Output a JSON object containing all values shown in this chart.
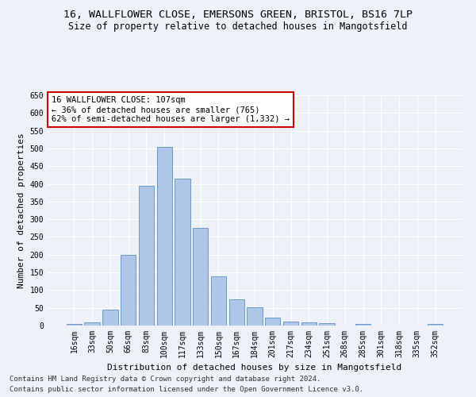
{
  "title1": "16, WALLFLOWER CLOSE, EMERSONS GREEN, BRISTOL, BS16 7LP",
  "title2": "Size of property relative to detached houses in Mangotsfield",
  "xlabel": "Distribution of detached houses by size in Mangotsfield",
  "ylabel": "Number of detached properties",
  "footer1": "Contains HM Land Registry data © Crown copyright and database right 2024.",
  "footer2": "Contains public sector information licensed under the Open Government Licence v3.0.",
  "categories": [
    "16sqm",
    "33sqm",
    "50sqm",
    "66sqm",
    "83sqm",
    "100sqm",
    "117sqm",
    "133sqm",
    "150sqm",
    "167sqm",
    "184sqm",
    "201sqm",
    "217sqm",
    "234sqm",
    "251sqm",
    "268sqm",
    "285sqm",
    "301sqm",
    "318sqm",
    "335sqm",
    "352sqm"
  ],
  "values": [
    5,
    10,
    45,
    200,
    395,
    505,
    415,
    275,
    138,
    75,
    52,
    22,
    12,
    8,
    7,
    0,
    5,
    0,
    0,
    0,
    4
  ],
  "bar_color": "#aec6e8",
  "bar_edge_color": "#5a8fc2",
  "annotation_text_line1": "16 WALLFLOWER CLOSE: 107sqm",
  "annotation_text_line2": "← 36% of detached houses are smaller (765)",
  "annotation_text_line3": "62% of semi-detached houses are larger (1,332) →",
  "annotation_box_color": "#ffffff",
  "annotation_box_edge": "#cc0000",
  "ylim": [
    0,
    650
  ],
  "yticks": [
    0,
    50,
    100,
    150,
    200,
    250,
    300,
    350,
    400,
    450,
    500,
    550,
    600,
    650
  ],
  "bg_color": "#eef2f8",
  "grid_color": "#ffffff",
  "title1_fontsize": 9.5,
  "title2_fontsize": 8.5,
  "xlabel_fontsize": 8,
  "ylabel_fontsize": 8,
  "tick_fontsize": 7,
  "annotation_fontsize": 7.5,
  "footer_fontsize": 6.5
}
